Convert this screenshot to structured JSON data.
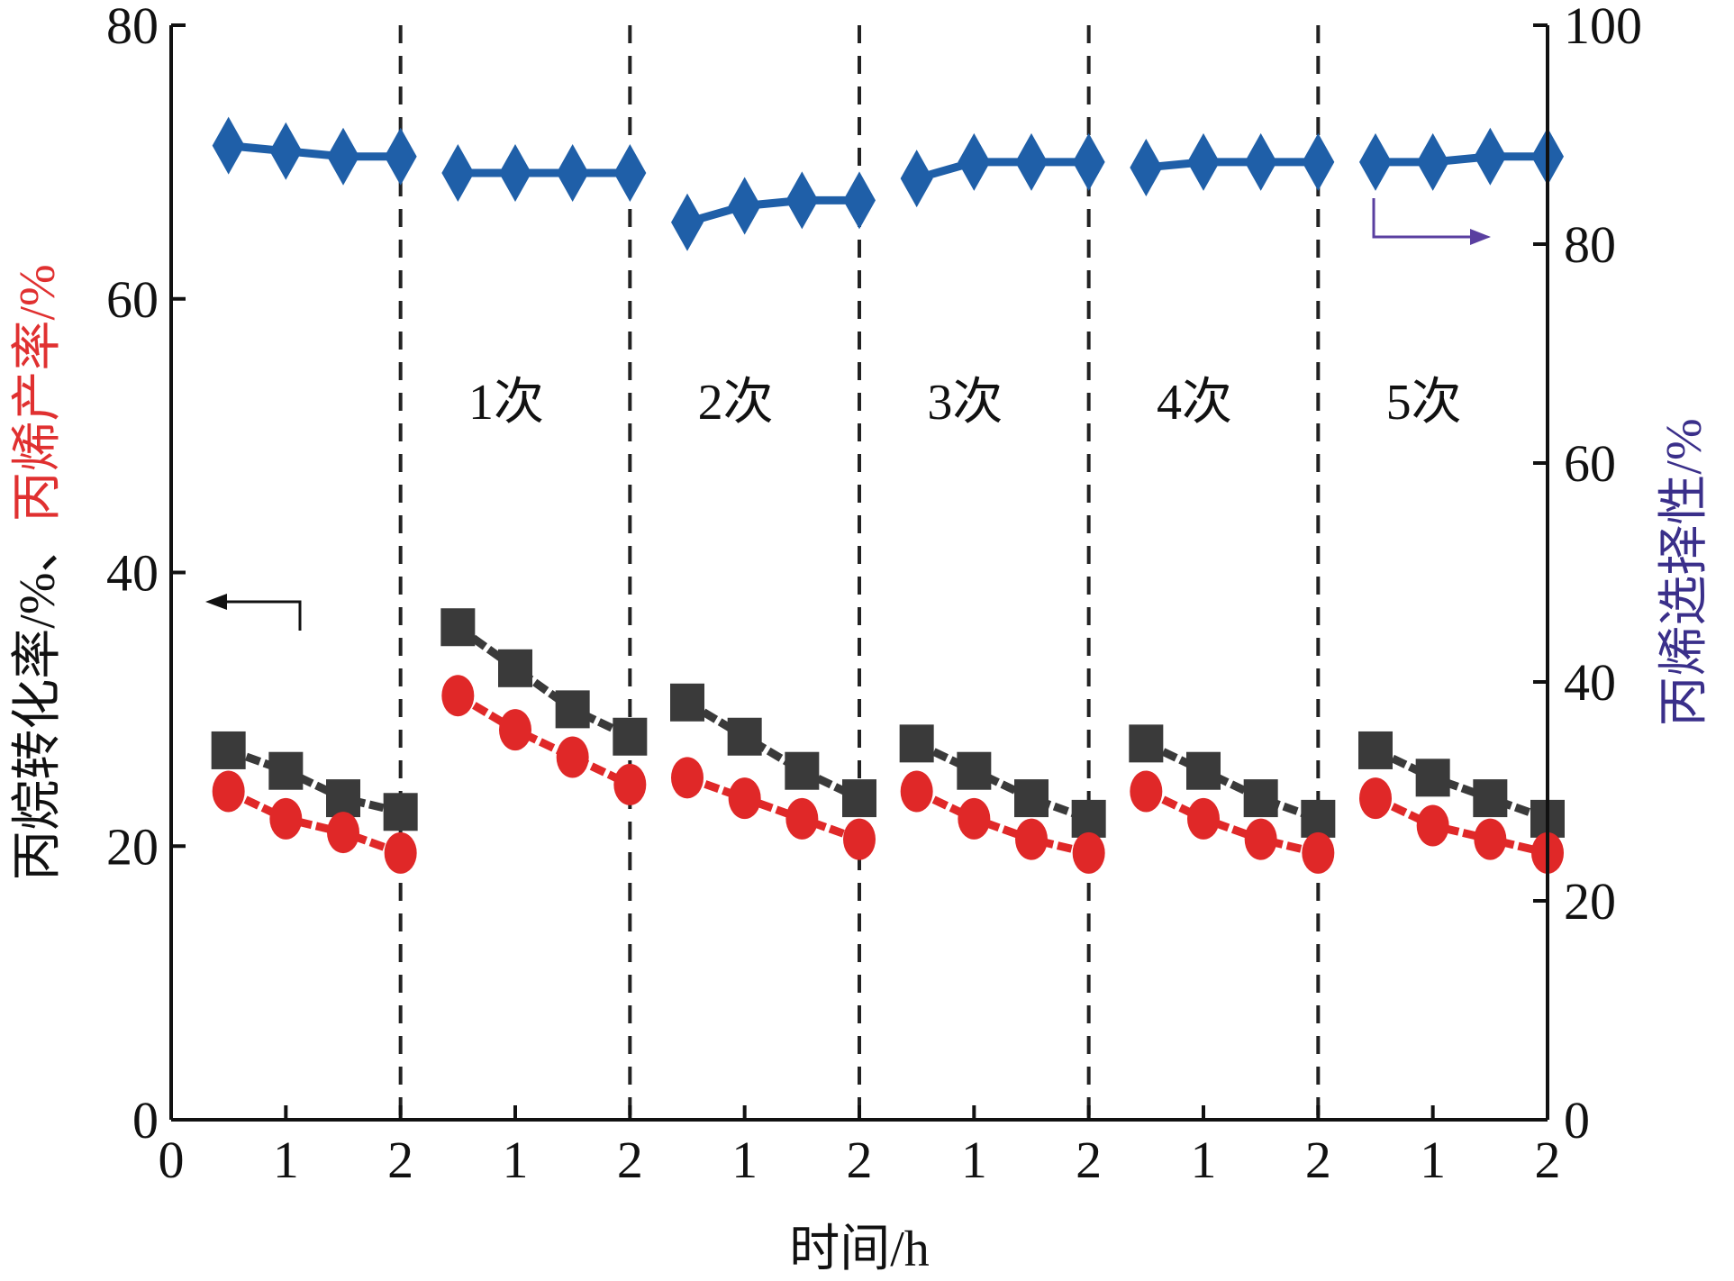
{
  "chart_data": {
    "type": "scatter",
    "xlabel": "时间/h",
    "ylabel_left": {
      "parts": [
        {
          "text": "丙烷转化率/%、",
          "color": "#111111"
        },
        {
          "text": "丙烯产率/%",
          "color": "#e03030"
        }
      ]
    },
    "ylabel_right": {
      "text": "丙烯选择性/%",
      "color": "#3a2f8a"
    },
    "ylim_left": [
      0,
      80
    ],
    "ylim_right": [
      0,
      100
    ],
    "yticks_left": [
      "0",
      "20",
      "40",
      "60",
      "80"
    ],
    "yticks_right": [
      "0",
      "20",
      "40",
      "60",
      "80",
      "100"
    ],
    "xticks": [
      "0",
      "1",
      "2",
      "1",
      "2",
      "1",
      "2",
      "1",
      "2",
      "1",
      "2",
      "1",
      "2"
    ],
    "region_labels": [
      "1次",
      "2次",
      "3次",
      "4次",
      "5次"
    ],
    "x": [
      0.5,
      1.0,
      1.5,
      2.0
    ],
    "series": [
      {
        "axis": "left",
        "marker": "square",
        "color": "#3a3a3a",
        "segments": [
          [
            27.0,
            25.5,
            23.5,
            22.5
          ],
          [
            36.0,
            33.0,
            30.0,
            28.0
          ],
          [
            30.5,
            28.0,
            25.5,
            23.5
          ],
          [
            27.5,
            25.5,
            23.5,
            22.0
          ],
          [
            27.5,
            25.5,
            23.5,
            22.0
          ],
          [
            27.0,
            25.0,
            23.5,
            22.0
          ]
        ]
      },
      {
        "axis": "left",
        "marker": "circle",
        "color": "#e02828",
        "segments": [
          [
            24.0,
            22.0,
            21.0,
            19.5
          ],
          [
            31.0,
            28.5,
            26.5,
            24.5
          ],
          [
            25.0,
            23.5,
            22.0,
            20.5
          ],
          [
            24.0,
            22.0,
            20.5,
            19.5
          ],
          [
            24.0,
            22.0,
            20.5,
            19.5
          ],
          [
            23.5,
            21.5,
            20.5,
            19.5
          ]
        ]
      },
      {
        "axis": "right",
        "marker": "diamond",
        "color": "#1f5fa8",
        "segments": [
          [
            89.0,
            88.5,
            88.0,
            88.0
          ],
          [
            86.5,
            86.5,
            86.5,
            86.5
          ],
          [
            82.0,
            83.5,
            84.0,
            84.0
          ],
          [
            86.0,
            87.5,
            87.5,
            87.5
          ],
          [
            87.0,
            87.5,
            87.5,
            87.5
          ],
          [
            87.5,
            87.5,
            88.0,
            88.0
          ]
        ]
      }
    ],
    "annotations": [
      {
        "type": "arrow",
        "direction": "left",
        "color": "#111111",
        "refers_to": "left axis"
      },
      {
        "type": "arrow",
        "direction": "right",
        "color": "#5a3fa0",
        "refers_to": "right axis"
      }
    ]
  }
}
